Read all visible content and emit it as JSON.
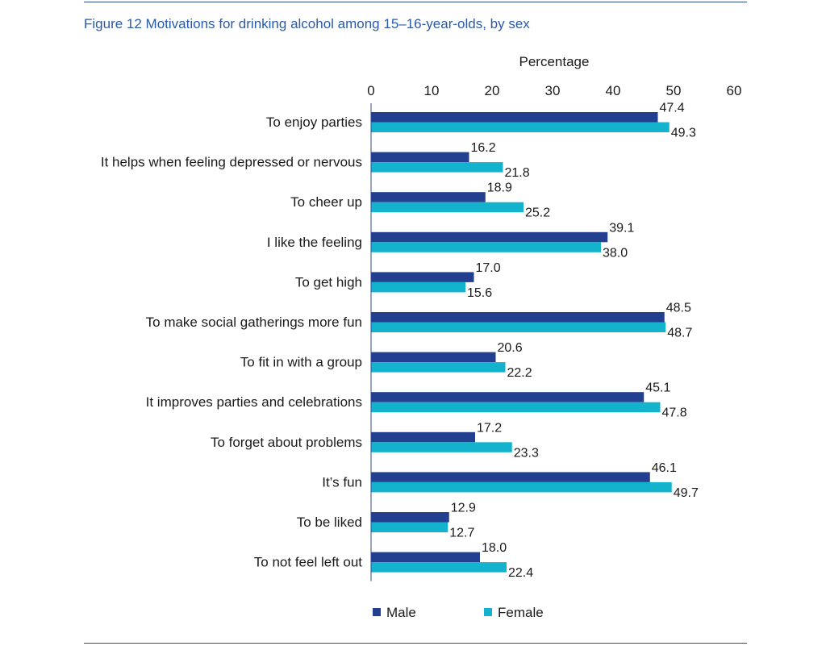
{
  "figure_title": "Figure 12 Motivations for drinking alcohol among 15–16-year-olds, by sex",
  "colors": {
    "male": "#233f8f",
    "female": "#13b3cd",
    "axis": "#2c4a8c",
    "title": "#2a5aa8"
  },
  "chart_data": {
    "type": "bar",
    "orientation": "horizontal",
    "title": "Figure 12 Motivations for drinking alcohol among 15–16-year-olds, by sex",
    "xlabel": "Percentage",
    "ylabel": "",
    "xlim": [
      0,
      60
    ],
    "xticks": [
      0,
      10,
      20,
      30,
      40,
      50,
      60
    ],
    "x_axis_position": "top",
    "grid": false,
    "legend_position": "bottom",
    "categories": [
      "To enjoy parties",
      "It helps when feeling depressed or nervous",
      "To cheer up",
      "I like the feeling",
      "To get high",
      "To make social gatherings more fun",
      "To fit in with a group",
      "It improves parties and celebrations",
      "To forget about problems",
      "It’s fun",
      "To be liked",
      "To not feel left out"
    ],
    "series": [
      {
        "name": "Male",
        "color": "#233f8f",
        "values": [
          47.4,
          16.2,
          18.9,
          39.1,
          17.0,
          48.5,
          20.6,
          45.1,
          17.2,
          46.1,
          12.9,
          18.0
        ]
      },
      {
        "name": "Female",
        "color": "#13b3cd",
        "values": [
          49.3,
          21.8,
          25.2,
          38.0,
          15.6,
          48.7,
          22.2,
          47.8,
          23.3,
          49.7,
          12.7,
          22.4
        ]
      }
    ]
  }
}
